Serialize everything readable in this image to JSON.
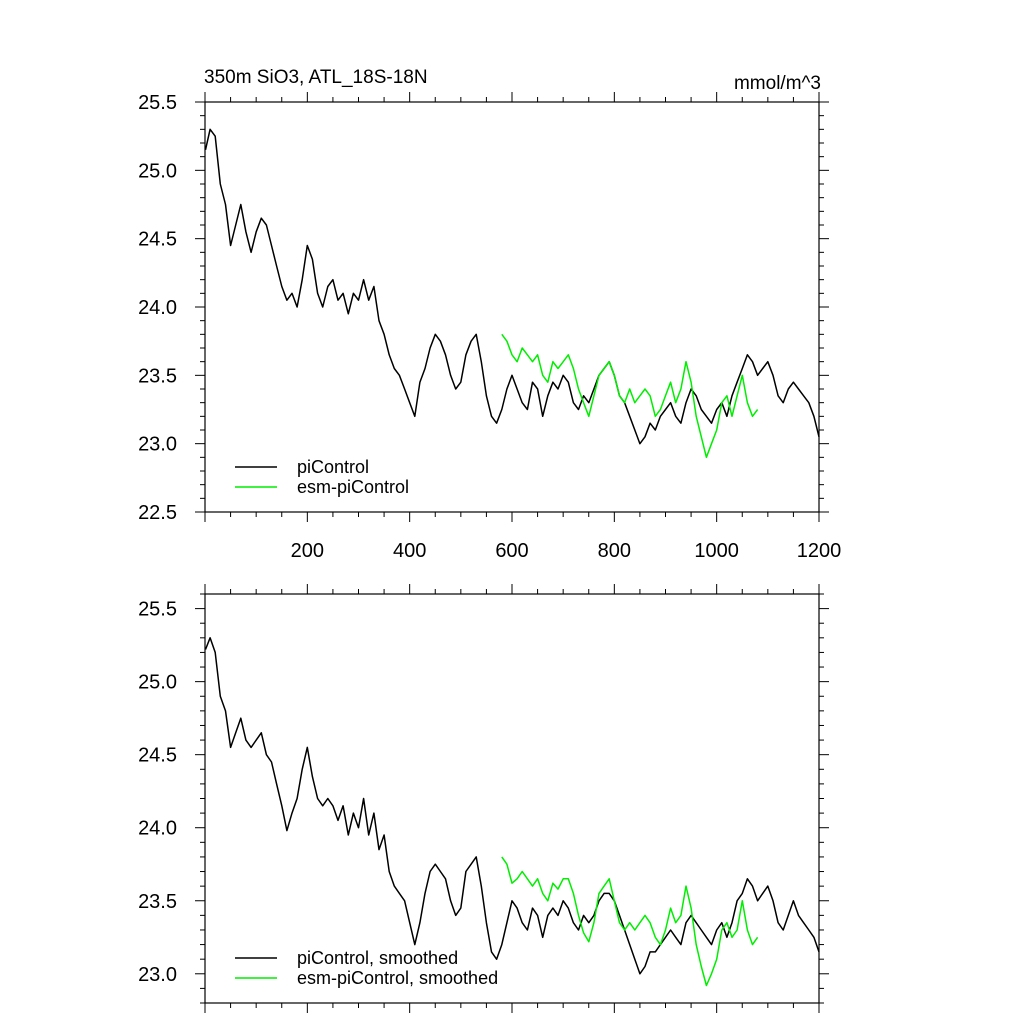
{
  "figure": {
    "title_left": "350m SiO3, ATL_18S-18N",
    "title_right": "mmol/m^3"
  },
  "colors": {
    "piControl": "#000000",
    "esm_piControl": "#00ee00"
  },
  "chart_data": [
    {
      "type": "line",
      "title": "350m SiO3, ATL_18S-18N",
      "units": "mmol/m^3",
      "xlim": [
        0,
        1200
      ],
      "ylim": [
        22.5,
        25.5
      ],
      "xticks": [
        200,
        400,
        600,
        800,
        1000,
        1200
      ],
      "xtick_labels": [
        "200",
        "400",
        "600",
        "800",
        "1000",
        "1200"
      ],
      "yticks": [
        22.5,
        23.0,
        23.5,
        24.0,
        24.5,
        25.0,
        25.5
      ],
      "ytick_labels": [
        "22.5",
        "23.0",
        "23.5",
        "24.0",
        "24.5",
        "25.0",
        "25.5"
      ],
      "legend": "bottom-left",
      "grid": false,
      "series": [
        {
          "name": "piControl",
          "color": "#000000",
          "x": [
            1,
            10,
            20,
            30,
            40,
            50,
            60,
            70,
            80,
            90,
            100,
            110,
            120,
            130,
            140,
            150,
            160,
            170,
            180,
            190,
            200,
            210,
            220,
            230,
            240,
            250,
            260,
            270,
            280,
            290,
            300,
            310,
            320,
            330,
            340,
            350,
            360,
            370,
            380,
            390,
            400,
            410,
            420,
            430,
            440,
            450,
            460,
            470,
            480,
            490,
            500,
            510,
            520,
            530,
            540,
            550,
            560,
            570,
            580,
            590,
            600,
            610,
            620,
            630,
            640,
            650,
            660,
            670,
            680,
            690,
            700,
            710,
            720,
            730,
            740,
            750,
            760,
            770,
            780,
            790,
            800,
            810,
            820,
            830,
            840,
            850,
            860,
            870,
            880,
            890,
            900,
            910,
            920,
            930,
            940,
            950,
            960,
            970,
            980,
            990,
            1000,
            1010,
            1020,
            1030,
            1040,
            1050,
            1060,
            1070,
            1080,
            1090,
            1100,
            1110,
            1120,
            1130,
            1140,
            1150,
            1160,
            1170,
            1180,
            1190,
            1200
          ],
          "y": [
            25.15,
            25.3,
            25.25,
            24.9,
            24.75,
            24.45,
            24.6,
            24.75,
            24.55,
            24.4,
            24.55,
            24.65,
            24.6,
            24.45,
            24.3,
            24.15,
            24.05,
            24.1,
            24.0,
            24.2,
            24.45,
            24.35,
            24.1,
            24.0,
            24.15,
            24.2,
            24.05,
            24.1,
            23.95,
            24.1,
            24.05,
            24.2,
            24.05,
            24.15,
            23.9,
            23.8,
            23.65,
            23.55,
            23.5,
            23.4,
            23.3,
            23.2,
            23.45,
            23.55,
            23.7,
            23.8,
            23.75,
            23.65,
            23.5,
            23.4,
            23.45,
            23.65,
            23.75,
            23.8,
            23.6,
            23.35,
            23.2,
            23.15,
            23.25,
            23.4,
            23.5,
            23.4,
            23.3,
            23.25,
            23.45,
            23.4,
            23.2,
            23.35,
            23.45,
            23.4,
            23.5,
            23.45,
            23.3,
            23.25,
            23.35,
            23.3,
            23.4,
            23.5,
            23.55,
            23.6,
            23.5,
            23.35,
            23.3,
            23.2,
            23.1,
            23.0,
            23.05,
            23.15,
            23.1,
            23.2,
            23.25,
            23.3,
            23.2,
            23.15,
            23.3,
            23.4,
            23.35,
            23.25,
            23.2,
            23.15,
            23.25,
            23.3,
            23.2,
            23.35,
            23.45,
            23.55,
            23.65,
            23.6,
            23.5,
            23.55,
            23.6,
            23.5,
            23.35,
            23.3,
            23.4,
            23.45,
            23.4,
            23.35,
            23.3,
            23.2,
            23.05
          ]
        },
        {
          "name": "esm-piControl",
          "color": "#00ee00",
          "x": [
            580,
            590,
            600,
            610,
            620,
            630,
            640,
            650,
            660,
            670,
            680,
            690,
            700,
            710,
            720,
            730,
            740,
            750,
            760,
            770,
            780,
            790,
            800,
            810,
            820,
            830,
            840,
            850,
            860,
            870,
            880,
            890,
            900,
            910,
            920,
            930,
            940,
            950,
            960,
            970,
            980,
            990,
            1000,
            1010,
            1020,
            1030,
            1040,
            1050,
            1060,
            1070,
            1080
          ],
          "y": [
            23.8,
            23.75,
            23.65,
            23.6,
            23.7,
            23.65,
            23.6,
            23.65,
            23.5,
            23.45,
            23.6,
            23.55,
            23.6,
            23.65,
            23.55,
            23.4,
            23.3,
            23.2,
            23.35,
            23.5,
            23.55,
            23.6,
            23.5,
            23.35,
            23.3,
            23.4,
            23.3,
            23.35,
            23.4,
            23.35,
            23.2,
            23.25,
            23.35,
            23.45,
            23.3,
            23.4,
            23.6,
            23.45,
            23.2,
            23.05,
            22.9,
            23.0,
            23.1,
            23.3,
            23.35,
            23.2,
            23.35,
            23.5,
            23.3,
            23.2,
            23.25
          ]
        }
      ]
    },
    {
      "type": "line",
      "xlim": [
        0,
        1200
      ],
      "ylim": [
        22.8,
        25.6
      ],
      "xticks": [
        200,
        400,
        600,
        800,
        1000,
        1200
      ],
      "yticks": [
        23.0,
        23.5,
        24.0,
        24.5,
        25.0,
        25.5
      ],
      "ytick_labels": [
        "23.0",
        "23.5",
        "24.0",
        "24.5",
        "25.0",
        "25.5"
      ],
      "legend": "bottom-left",
      "grid": false,
      "series": [
        {
          "name": "piControl, smoothed",
          "color": "#000000",
          "x": [
            1,
            10,
            20,
            30,
            40,
            50,
            60,
            70,
            80,
            90,
            100,
            110,
            120,
            130,
            140,
            150,
            160,
            170,
            180,
            190,
            200,
            210,
            220,
            230,
            240,
            250,
            260,
            270,
            280,
            290,
            300,
            310,
            320,
            330,
            340,
            350,
            360,
            370,
            380,
            390,
            400,
            410,
            420,
            430,
            440,
            450,
            460,
            470,
            480,
            490,
            500,
            510,
            520,
            530,
            540,
            550,
            560,
            570,
            580,
            590,
            600,
            610,
            620,
            630,
            640,
            650,
            660,
            670,
            680,
            690,
            700,
            710,
            720,
            730,
            740,
            750,
            760,
            770,
            780,
            790,
            800,
            810,
            820,
            830,
            840,
            850,
            860,
            870,
            880,
            890,
            900,
            910,
            920,
            930,
            940,
            950,
            960,
            970,
            980,
            990,
            1000,
            1010,
            1020,
            1030,
            1040,
            1050,
            1060,
            1070,
            1080,
            1090,
            1100,
            1110,
            1120,
            1130,
            1140,
            1150,
            1160,
            1170,
            1180,
            1190,
            1200
          ],
          "y": [
            25.22,
            25.3,
            25.2,
            24.9,
            24.8,
            24.55,
            24.65,
            24.75,
            24.6,
            24.55,
            24.6,
            24.65,
            24.5,
            24.45,
            24.3,
            24.15,
            23.98,
            24.1,
            24.2,
            24.4,
            24.55,
            24.35,
            24.2,
            24.15,
            24.2,
            24.15,
            24.05,
            24.15,
            23.95,
            24.1,
            24.0,
            24.2,
            23.95,
            24.1,
            23.85,
            23.95,
            23.7,
            23.6,
            23.55,
            23.5,
            23.35,
            23.2,
            23.35,
            23.55,
            23.7,
            23.75,
            23.7,
            23.65,
            23.5,
            23.4,
            23.45,
            23.7,
            23.75,
            23.8,
            23.6,
            23.35,
            23.15,
            23.1,
            23.2,
            23.35,
            23.5,
            23.45,
            23.35,
            23.3,
            23.45,
            23.4,
            23.25,
            23.4,
            23.45,
            23.4,
            23.5,
            23.45,
            23.35,
            23.3,
            23.4,
            23.35,
            23.4,
            23.5,
            23.55,
            23.55,
            23.5,
            23.4,
            23.3,
            23.2,
            23.1,
            23.0,
            23.05,
            23.15,
            23.15,
            23.2,
            23.25,
            23.3,
            23.25,
            23.2,
            23.35,
            23.4,
            23.35,
            23.3,
            23.25,
            23.2,
            23.3,
            23.35,
            23.25,
            23.35,
            23.5,
            23.55,
            23.65,
            23.6,
            23.5,
            23.55,
            23.6,
            23.5,
            23.35,
            23.3,
            23.4,
            23.5,
            23.4,
            23.35,
            23.3,
            23.25,
            23.15
          ]
        },
        {
          "name": "esm-piControl, smoothed",
          "color": "#00ee00",
          "x": [
            580,
            590,
            600,
            610,
            620,
            630,
            640,
            650,
            660,
            670,
            680,
            690,
            700,
            710,
            720,
            730,
            740,
            750,
            760,
            770,
            780,
            790,
            800,
            810,
            820,
            830,
            840,
            850,
            860,
            870,
            880,
            890,
            900,
            910,
            920,
            930,
            940,
            950,
            960,
            970,
            980,
            990,
            1000,
            1010,
            1020,
            1030,
            1040,
            1050,
            1060,
            1070,
            1080
          ],
          "y": [
            23.8,
            23.75,
            23.62,
            23.65,
            23.7,
            23.65,
            23.6,
            23.65,
            23.55,
            23.5,
            23.62,
            23.58,
            23.65,
            23.65,
            23.55,
            23.4,
            23.28,
            23.22,
            23.35,
            23.55,
            23.6,
            23.65,
            23.5,
            23.35,
            23.3,
            23.35,
            23.3,
            23.35,
            23.4,
            23.35,
            23.25,
            23.2,
            23.3,
            23.45,
            23.35,
            23.4,
            23.6,
            23.45,
            23.2,
            23.05,
            22.92,
            23.0,
            23.1,
            23.3,
            23.35,
            23.25,
            23.3,
            23.5,
            23.3,
            23.2,
            23.25
          ]
        }
      ]
    }
  ]
}
